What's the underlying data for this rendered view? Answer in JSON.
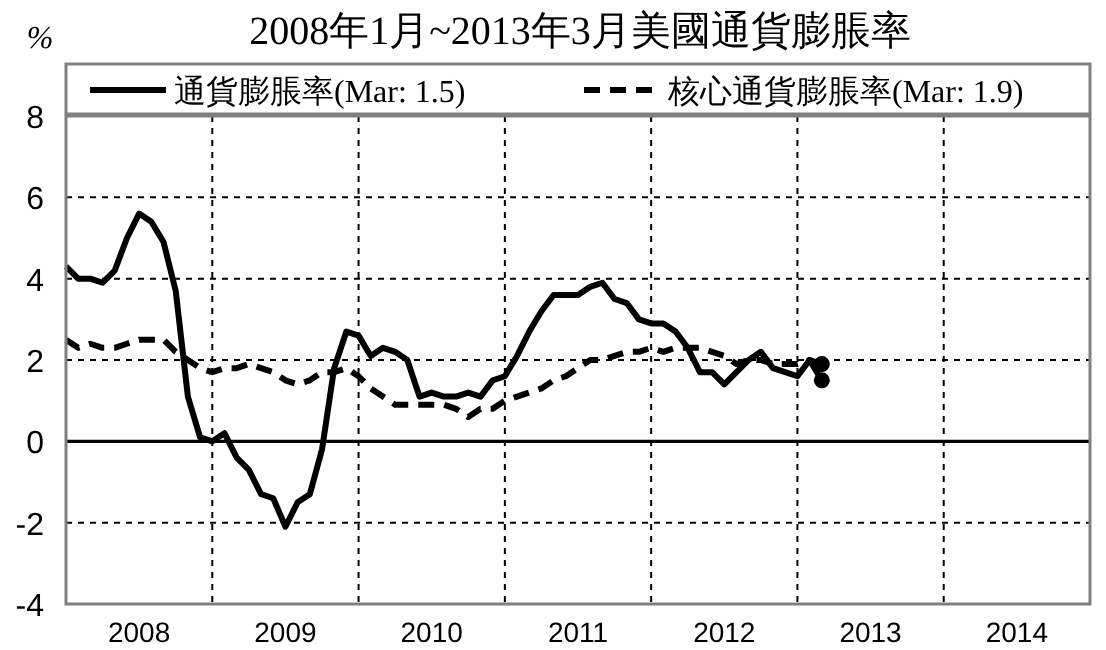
{
  "chart_data": {
    "type": "line",
    "title": "2008年1月~2013年3月美國通貨膨脹率",
    "ylabel": "%",
    "x": [
      2008.0,
      2008.0833,
      2008.1667,
      2008.25,
      2008.3333,
      2008.4167,
      2008.5,
      2008.5833,
      2008.6667,
      2008.75,
      2008.8333,
      2008.9167,
      2009.0,
      2009.0833,
      2009.1667,
      2009.25,
      2009.3333,
      2009.4167,
      2009.5,
      2009.5833,
      2009.6667,
      2009.75,
      2009.8333,
      2009.9167,
      2010.0,
      2010.0833,
      2010.1667,
      2010.25,
      2010.3333,
      2010.4167,
      2010.5,
      2010.5833,
      2010.6667,
      2010.75,
      2010.8333,
      2010.9167,
      2011.0,
      2011.0833,
      2011.1667,
      2011.25,
      2011.3333,
      2011.4167,
      2011.5,
      2011.5833,
      2011.6667,
      2011.75,
      2011.8333,
      2011.9167,
      2012.0,
      2012.0833,
      2012.1667,
      2012.25,
      2012.3333,
      2012.4167,
      2012.5,
      2012.5833,
      2012.6667,
      2012.75,
      2012.8333,
      2012.9167,
      2013.0,
      2013.0833,
      2013.1667
    ],
    "series": [
      {
        "name": "通貨膨脹率(Mar: 1.5)",
        "color": "#000000",
        "line_style": "solid",
        "values": [
          4.3,
          4.0,
          4.0,
          3.9,
          4.2,
          5.0,
          5.6,
          5.4,
          4.9,
          3.7,
          1.1,
          0.1,
          0.0,
          0.2,
          -0.4,
          -0.7,
          -1.3,
          -1.4,
          -2.1,
          -1.5,
          -1.3,
          -0.2,
          1.8,
          2.7,
          2.6,
          2.1,
          2.3,
          2.2,
          2.0,
          1.1,
          1.2,
          1.1,
          1.1,
          1.2,
          1.1,
          1.5,
          1.6,
          2.1,
          2.7,
          3.2,
          3.6,
          3.6,
          3.6,
          3.8,
          3.9,
          3.5,
          3.4,
          3.0,
          2.9,
          2.9,
          2.7,
          2.3,
          1.7,
          1.7,
          1.4,
          1.7,
          2.0,
          2.2,
          1.8,
          1.7,
          1.6,
          2.0,
          1.5
        ]
      },
      {
        "name": "核心通貨膨脹率(Mar: 1.9)",
        "color": "#000000",
        "line_style": "dashed",
        "values": [
          2.5,
          2.3,
          2.4,
          2.3,
          2.3,
          2.4,
          2.5,
          2.5,
          2.5,
          2.2,
          2.0,
          1.8,
          1.7,
          1.8,
          1.8,
          1.9,
          1.8,
          1.7,
          1.5,
          1.4,
          1.5,
          1.7,
          1.7,
          1.8,
          1.6,
          1.3,
          1.1,
          0.9,
          0.9,
          0.9,
          0.9,
          0.9,
          0.8,
          0.6,
          0.8,
          0.8,
          1.0,
          1.1,
          1.2,
          1.3,
          1.5,
          1.6,
          1.8,
          2.0,
          2.0,
          2.1,
          2.2,
          2.2,
          2.3,
          2.2,
          2.3,
          2.3,
          2.3,
          2.2,
          2.1,
          1.9,
          2.0,
          2.0,
          1.9,
          1.9,
          1.9,
          2.0,
          1.9
        ]
      },
      {
        "type": "scatter",
        "color": "#000000",
        "x": [
          2013.1667
        ],
        "values": [
          1.5
        ]
      },
      {
        "type": "scatter",
        "color": "#000000",
        "x": [
          2013.1667
        ],
        "values": [
          1.9
        ]
      }
    ],
    "xlim": [
      2008,
      2015
    ],
    "xticks": [
      {
        "value": 2008.5,
        "label": "2008"
      },
      {
        "value": 2009.5,
        "label": "2009"
      },
      {
        "value": 2010.5,
        "label": "2010"
      },
      {
        "value": 2011.5,
        "label": "2011"
      },
      {
        "value": 2012.5,
        "label": "2012"
      },
      {
        "value": 2013.5,
        "label": "2013"
      },
      {
        "value": 2014.5,
        "label": "2014"
      }
    ],
    "ylim": [
      -4,
      8
    ],
    "yticks": [
      -4,
      -2,
      0,
      2,
      4,
      6,
      8
    ],
    "grid": "y",
    "legend": "top",
    "ref_lines": [
      {
        "axis": "y",
        "value": 0,
        "line_style": "solid",
        "color": "#000000"
      },
      {
        "axis": "x",
        "value": 2009,
        "line_style": "dotted",
        "color": "#000000"
      },
      {
        "axis": "x",
        "value": 2010,
        "line_style": "dotted",
        "color": "#000000"
      },
      {
        "axis": "x",
        "value": 2011,
        "line_style": "dotted",
        "color": "#000000"
      },
      {
        "axis": "x",
        "value": 2012,
        "line_style": "dotted",
        "color": "#000000"
      },
      {
        "axis": "x",
        "value": 2013,
        "line_style": "dotted",
        "color": "#000000"
      },
      {
        "axis": "x",
        "value": 2014,
        "line_style": "dotted",
        "color": "#000000"
      }
    ]
  }
}
